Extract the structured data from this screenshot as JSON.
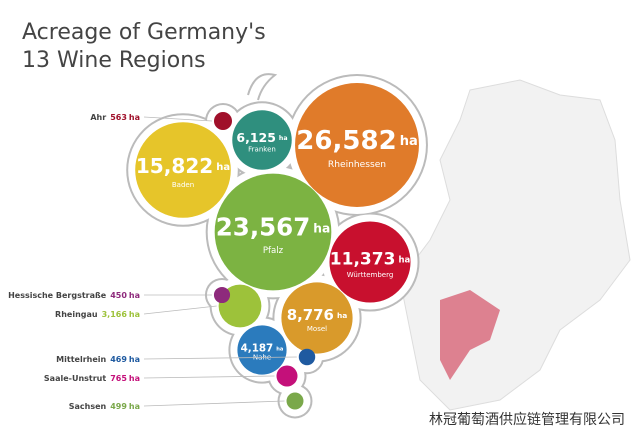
{
  "chart_data": {
    "type": "bubble",
    "title": [
      "Acreage of Germany's",
      "13 Wine Regions"
    ],
    "unit": "ha",
    "categories": [
      "Rheinhessen",
      "Pfalz",
      "Baden",
      "Württemberg",
      "Mosel",
      "Franken",
      "Nahe",
      "Rheingau",
      "Saale-Unstrut",
      "Ahr",
      "Sachsen",
      "Mittelrhein",
      "Hessische Bergstraße"
    ],
    "values": [
      26582,
      23567,
      15822,
      11373,
      8776,
      6125,
      4187,
      3166,
      765,
      563,
      499,
      469,
      450
    ],
    "value_labels": [
      "26,582",
      "23,567",
      "15,822",
      "11,373",
      "8,776",
      "6,125",
      "4,187",
      "3,166",
      "765",
      "563",
      "499",
      "469",
      "450"
    ],
    "colors": [
      "#e07b2a",
      "#7cb342",
      "#e6c52a",
      "#c8102e",
      "#d99a2b",
      "#2f8f7e",
      "#2b7bbd",
      "#9dc23a",
      "#c4107a",
      "#a0102a",
      "#7aa84a",
      "#1f5aa0",
      "#8e2a7c"
    ],
    "watermark": "林冠葡萄酒供应链管理有限公司"
  }
}
